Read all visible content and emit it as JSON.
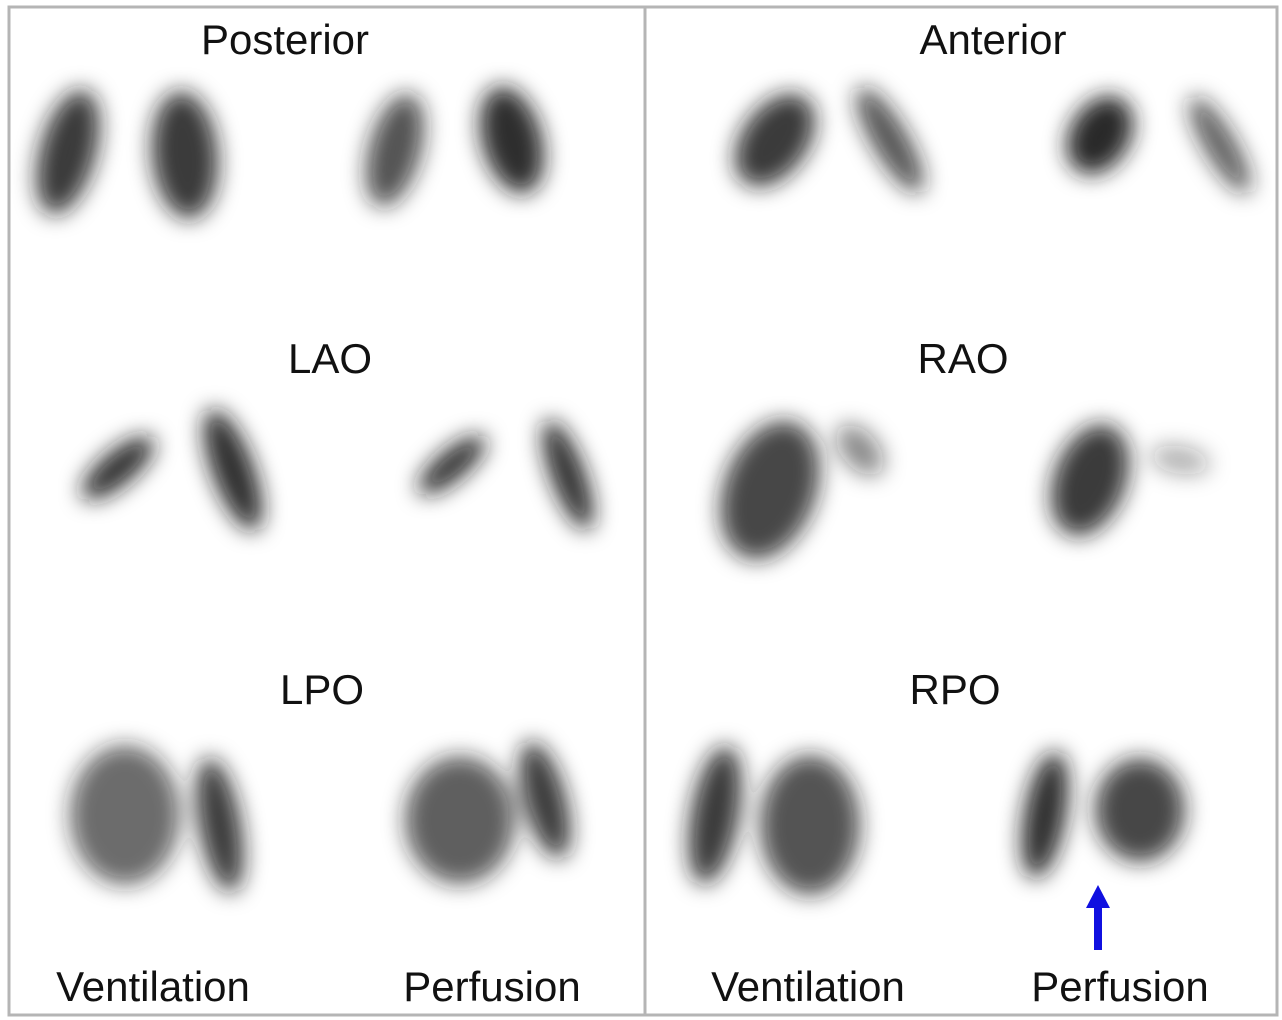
{
  "panels": [
    {
      "views": [
        "Posterior",
        "LAO",
        "LPO"
      ],
      "columns": [
        "Ventilation",
        "Perfusion"
      ]
    },
    {
      "views": [
        "Anterior",
        "RAO",
        "RPO"
      ],
      "columns": [
        "Ventilation",
        "Perfusion"
      ]
    }
  ]
}
